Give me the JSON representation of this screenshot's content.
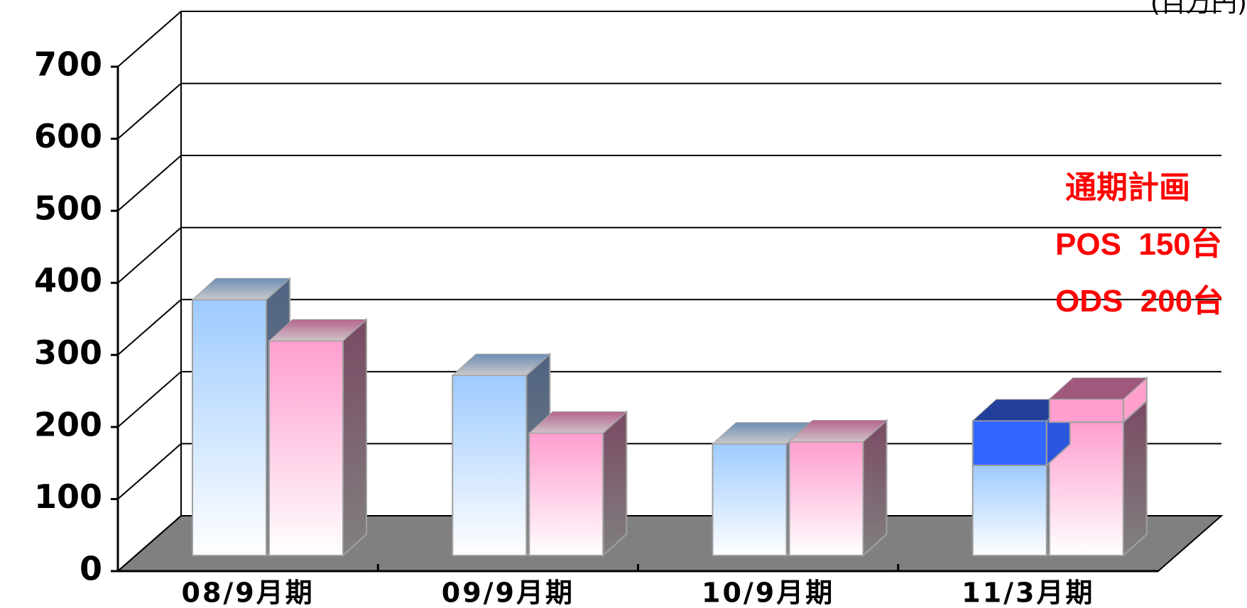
{
  "chart_data": {
    "type": "bar",
    "categories": [
      "08/9月期",
      "09/9月期",
      "10/9月期",
      "11/3月期"
    ],
    "series": [
      {
        "values": [
          355,
          250,
          155,
          125
        ],
        "color": "#9ecbff"
      },
      {
        "values": [
          298,
          170,
          158,
          185
        ],
        "color": "#ff9ecf"
      }
    ],
    "plan_segments": [
      {
        "series": 0,
        "category": "11/3月期",
        "from": 125,
        "to": 187,
        "color": "#3366ff"
      },
      {
        "series": 1,
        "category": "11/3月期",
        "from": 185,
        "to": 217,
        "color": "#ff9ecf"
      }
    ],
    "ylim": [
      0,
      700
    ],
    "yticks": [
      "0",
      "100",
      "200",
      "300",
      "400",
      "500",
      "600",
      "700"
    ],
    "unit_label": "(百万円)",
    "grid": true,
    "style": "3d-clustered-column",
    "annotation": {
      "title": "通期計画",
      "lines": [
        "POS  150台",
        "ODS  200台"
      ],
      "color": "#ff0000"
    }
  }
}
